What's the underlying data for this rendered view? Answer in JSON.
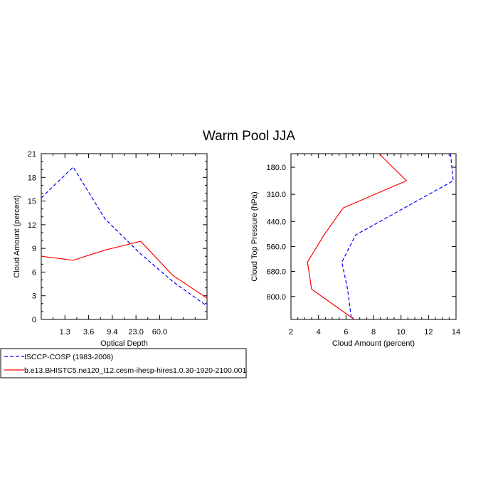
{
  "title": "Warm Pool JJA",
  "legend": [
    {
      "label": "ISCCP-COSP (1983-2008)",
      "color": "#0000ff",
      "dash": "dashed"
    },
    {
      "label": "b.e13.BHISTC5.ne120_t12.cesm-ihesp-hires1.0.30-1920-2100.001",
      "color": "#ff0000",
      "dash": "solid"
    }
  ],
  "chart_data": [
    {
      "type": "line",
      "xlabel": "Optical Depth",
      "ylabel": "Cloud Amount (percent)",
      "xlim": [
        0,
        7
      ],
      "ylim": [
        0,
        21
      ],
      "x_ticks": [
        {
          "pos": 1,
          "label": "1.3"
        },
        {
          "pos": 2,
          "label": "3.6"
        },
        {
          "pos": 3,
          "label": "9.4"
        },
        {
          "pos": 4,
          "label": "23.0"
        },
        {
          "pos": 5,
          "label": "60.0"
        }
      ],
      "y_ticks": [
        0,
        3,
        6,
        9,
        12,
        15,
        18,
        21
      ],
      "x": [
        0,
        1.35,
        2.7,
        4.2,
        5.55,
        7
      ],
      "series": [
        {
          "name": "ISCCP-COSP (1983-2008)",
          "color": "#0000ff",
          "dash": "dashed",
          "values": [
            15.4,
            19.3,
            12.7,
            8.3,
            4.8,
            1.7
          ]
        },
        {
          "name": "b.e13.BHISTC5.ne120_t12.cesm-ihesp-hires1.0.30-1920-2100.001",
          "color": "#ff0000",
          "dash": "solid",
          "values": [
            8.0,
            7.5,
            8.8,
            9.9,
            5.6,
            2.7
          ]
        }
      ]
    },
    {
      "type": "line",
      "xlabel": "Cloud Amount (percent)",
      "ylabel": "Cloud Top Pressure (hPa)",
      "xlim": [
        2,
        14
      ],
      "ylim": [
        115,
        910
      ],
      "y_inverted": true,
      "x_ticks": [
        2,
        4,
        6,
        8,
        10,
        12,
        14
      ],
      "y_ticks": [
        {
          "pos": 180,
          "label": "180.0"
        },
        {
          "pos": 310,
          "label": "310.0"
        },
        {
          "pos": 440,
          "label": "440.0"
        },
        {
          "pos": 560,
          "label": "560.0"
        },
        {
          "pos": 680,
          "label": "680.0"
        },
        {
          "pos": 800,
          "label": "800.0"
        }
      ],
      "series": [
        {
          "name": "ISCCP-COSP (1983-2008)",
          "color": "#0000ff",
          "dash": "dashed",
          "points": [
            [
              13.6,
              115
            ],
            [
              13.8,
              245
            ],
            [
              6.7,
              505
            ],
            [
              5.7,
              635
            ],
            [
              6.1,
              760
            ],
            [
              6.4,
              910
            ]
          ]
        },
        {
          "name": "b.e13.BHISTC5.ne120_t12.cesm-ihesp-hires1.0.30-1920-2100.001",
          "color": "#ff0000",
          "dash": "solid",
          "points": [
            [
              8.4,
              115
            ],
            [
              10.4,
              245
            ],
            [
              5.8,
              375
            ],
            [
              4.4,
              505
            ],
            [
              3.2,
              635
            ],
            [
              3.5,
              765
            ],
            [
              6.6,
              910
            ]
          ]
        }
      ]
    }
  ]
}
